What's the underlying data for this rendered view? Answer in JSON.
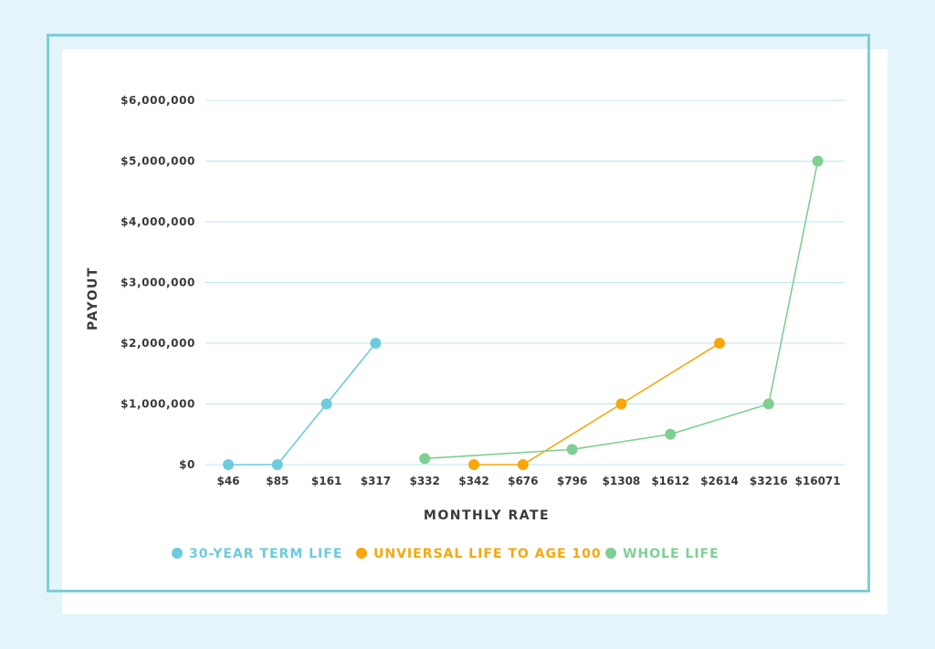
{
  "chart_data": {
    "type": "line",
    "xlabel": "MONTHLY RATE",
    "ylabel": "PAYOUT",
    "categories": [
      "$46",
      "$85",
      "$161",
      "$317",
      "$332",
      "$342",
      "$676",
      "$796",
      "$1308",
      "$1612",
      "$2614",
      "$3216",
      "$16071"
    ],
    "yticks": [
      "$0",
      "$1,000,000",
      "$2,000,000",
      "$3,000,000",
      "$4,000,000",
      "$5,000,000",
      "$6,000,000"
    ],
    "ylim": [
      0,
      6000000
    ],
    "grid": true,
    "legend_position": "bottom",
    "series": [
      {
        "name": "30-YEAR TERM LIFE",
        "color": "#6ccbdc",
        "points": [
          [
            "$46",
            0
          ],
          [
            "$85",
            0
          ],
          [
            "$161",
            1000000
          ],
          [
            "$317",
            2000000
          ]
        ]
      },
      {
        "name": "UNVIERSAL LIFE TO AGE 100",
        "color": "#f7a70c",
        "points": [
          [
            "$342",
            0
          ],
          [
            "$676",
            0
          ],
          [
            "$1308",
            1000000
          ],
          [
            "$2614",
            2000000
          ]
        ]
      },
      {
        "name": "WHOLE LIFE",
        "color": "#7fcf92",
        "points": [
          [
            "$332",
            100000
          ],
          [
            "$796",
            250000
          ],
          [
            "$1612",
            500000
          ],
          [
            "$3216",
            1000000
          ],
          [
            "$16071",
            5000000
          ]
        ]
      }
    ]
  },
  "colors": {
    "grid": "#bfe6ee",
    "text": "#3a3a3a",
    "frame": "#7ccfd8",
    "background": "#e3f4fa"
  }
}
